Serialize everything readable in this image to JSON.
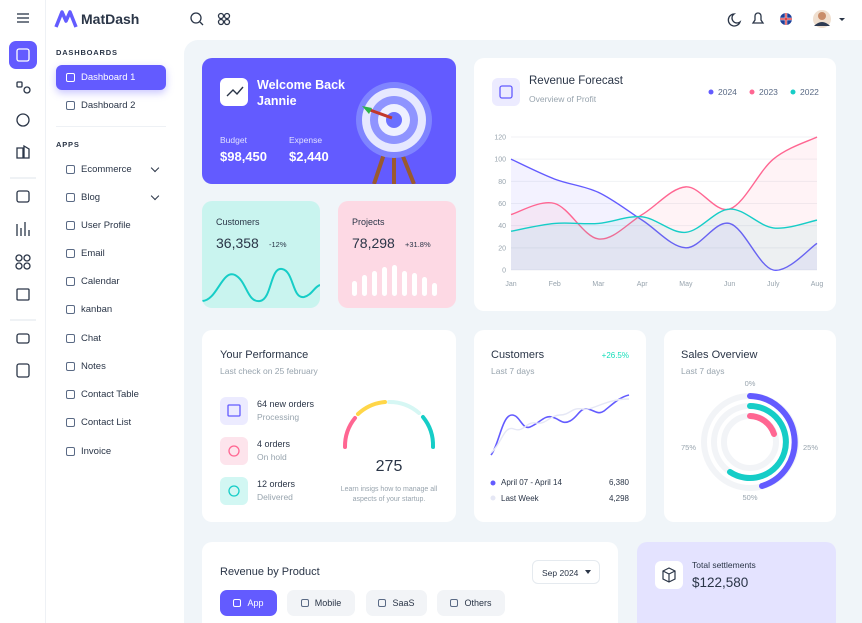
{
  "brand": "MatDash",
  "sidebar": {
    "sections": [
      {
        "title": "DASHBOARDS",
        "items": [
          "Dashboard 1",
          "Dashboard 2"
        ]
      },
      {
        "title": "APPS",
        "items": [
          "Ecommerce",
          "Blog",
          "User Profile",
          "Email",
          "Calendar",
          "kanban",
          "Chat",
          "Notes",
          "Contact Table",
          "Contact List",
          "Invoice"
        ]
      }
    ]
  },
  "welcome": {
    "title": "Welcome Back Jannie",
    "stats": [
      {
        "label": "Budget",
        "value": "$98,450"
      },
      {
        "label": "Expense",
        "value": "$2,440"
      }
    ]
  },
  "customers_card": {
    "label": "Customers",
    "value": "36,358",
    "change": "-12%"
  },
  "projects_card": {
    "label": "Projects",
    "value": "78,298",
    "change": "+31.8%"
  },
  "chart_data": {
    "type": "line",
    "title": "Revenue Forecast",
    "subtitle": "Overview of Profit",
    "categories": [
      "Jan",
      "Feb",
      "Mar",
      "Apr",
      "May",
      "Jun",
      "July",
      "Aug"
    ],
    "series": [
      {
        "name": "2024",
        "color": "#635bff",
        "values": [
          100,
          82,
          70,
          45,
          20,
          42,
          0,
          24
        ]
      },
      {
        "name": "2023",
        "color": "#ff6692",
        "values": [
          50,
          60,
          28,
          50,
          75,
          55,
          100,
          120
        ]
      },
      {
        "name": "2022",
        "color": "#16cdc7",
        "values": [
          35,
          42,
          42,
          48,
          34,
          55,
          38,
          45
        ]
      }
    ],
    "ylim": [
      0,
      120
    ],
    "yticks": [
      0,
      20,
      40,
      60,
      80,
      100,
      120
    ],
    "grid": true
  },
  "performance": {
    "title": "Your Performance",
    "subtitle": "Last check on 25 february",
    "items": [
      {
        "title": "64 new orders",
        "status": "Processing"
      },
      {
        "title": "4 orders",
        "status": "On hold"
      },
      {
        "title": "12 orders",
        "status": "Delivered"
      }
    ],
    "gauge_value": "275",
    "caption": "Learn insigs how to manage all aspects of your startup."
  },
  "customers_chart": {
    "title": "Customers",
    "change": "+26.5%",
    "subtitle": "Last 7 days",
    "legend": [
      {
        "label": "April 07 - April 14",
        "value": "6,380"
      },
      {
        "label": "Last Week",
        "value": "4,298"
      }
    ]
  },
  "sales_overview": {
    "title": "Sales Overview",
    "subtitle": "Last 7 days",
    "labels": [
      "0%",
      "25%",
      "50%",
      "75%"
    ]
  },
  "revenue_by_product": {
    "title": "Revenue by Product",
    "period": "Sep 2024",
    "tabs": [
      "App",
      "Mobile",
      "SaaS",
      "Others"
    ]
  },
  "settlements": {
    "label": "Total settlements",
    "value": "$122,580"
  }
}
